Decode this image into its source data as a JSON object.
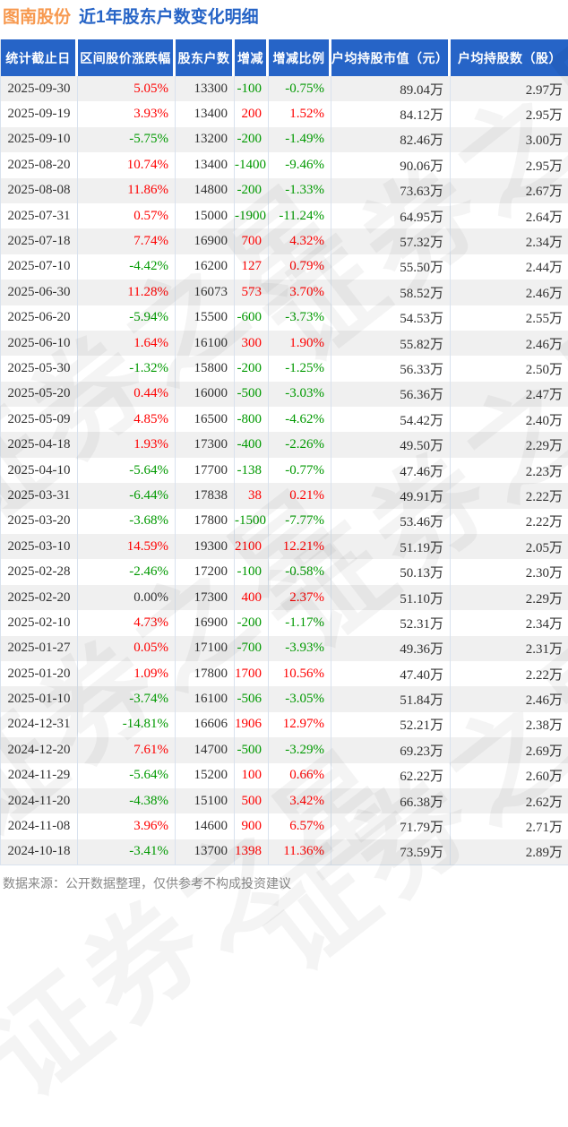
{
  "page": {
    "title_stock": "图南股份",
    "title_sub": "近1年股东户数变化明细"
  },
  "watermark_text": "证券之星",
  "footer_note": "数据来源：公开数据整理，仅供参考不构成投资建议",
  "colors": {
    "header_bg": "#2664c7",
    "title_stock": "#f7994f",
    "title_sub": "#2563c6",
    "up_red": "#fe0000",
    "down_green": "#009900",
    "neutral_text": "#333333",
    "row_stripe": "#f0f0f0",
    "divider": "#d9e2ee"
  },
  "table": {
    "columns": [
      "统计截止日",
      "区间股价涨跌幅",
      "股东户数",
      "增减",
      "增减比例",
      "户均持股市值（元）",
      "户均持股数（股）"
    ],
    "rows": [
      {
        "date": "2025-09-30",
        "change_pct": "5.05%",
        "change_dir": "up",
        "holders": "13300",
        "delta": "-100",
        "delta_pct": "-0.75%",
        "delta_dir": "down",
        "avg_value": "89.04万",
        "avg_shares": "2.97万"
      },
      {
        "date": "2025-09-19",
        "change_pct": "3.93%",
        "change_dir": "up",
        "holders": "13400",
        "delta": "200",
        "delta_pct": "1.52%",
        "delta_dir": "up",
        "avg_value": "84.12万",
        "avg_shares": "2.95万"
      },
      {
        "date": "2025-09-10",
        "change_pct": "-5.75%",
        "change_dir": "down",
        "holders": "13200",
        "delta": "-200",
        "delta_pct": "-1.49%",
        "delta_dir": "down",
        "avg_value": "82.46万",
        "avg_shares": "3.00万"
      },
      {
        "date": "2025-08-20",
        "change_pct": "10.74%",
        "change_dir": "up",
        "holders": "13400",
        "delta": "-1400",
        "delta_pct": "-9.46%",
        "delta_dir": "down",
        "avg_value": "90.06万",
        "avg_shares": "2.95万"
      },
      {
        "date": "2025-08-08",
        "change_pct": "11.86%",
        "change_dir": "up",
        "holders": "14800",
        "delta": "-200",
        "delta_pct": "-1.33%",
        "delta_dir": "down",
        "avg_value": "73.63万",
        "avg_shares": "2.67万"
      },
      {
        "date": "2025-07-31",
        "change_pct": "0.57%",
        "change_dir": "up",
        "holders": "15000",
        "delta": "-1900",
        "delta_pct": "-11.24%",
        "delta_dir": "down",
        "avg_value": "64.95万",
        "avg_shares": "2.64万"
      },
      {
        "date": "2025-07-18",
        "change_pct": "7.74%",
        "change_dir": "up",
        "holders": "16900",
        "delta": "700",
        "delta_pct": "4.32%",
        "delta_dir": "up",
        "avg_value": "57.32万",
        "avg_shares": "2.34万"
      },
      {
        "date": "2025-07-10",
        "change_pct": "-4.42%",
        "change_dir": "down",
        "holders": "16200",
        "delta": "127",
        "delta_pct": "0.79%",
        "delta_dir": "up",
        "avg_value": "55.50万",
        "avg_shares": "2.44万"
      },
      {
        "date": "2025-06-30",
        "change_pct": "11.28%",
        "change_dir": "up",
        "holders": "16073",
        "delta": "573",
        "delta_pct": "3.70%",
        "delta_dir": "up",
        "avg_value": "58.52万",
        "avg_shares": "2.46万"
      },
      {
        "date": "2025-06-20",
        "change_pct": "-5.94%",
        "change_dir": "down",
        "holders": "15500",
        "delta": "-600",
        "delta_pct": "-3.73%",
        "delta_dir": "down",
        "avg_value": "54.53万",
        "avg_shares": "2.55万"
      },
      {
        "date": "2025-06-10",
        "change_pct": "1.64%",
        "change_dir": "up",
        "holders": "16100",
        "delta": "300",
        "delta_pct": "1.90%",
        "delta_dir": "up",
        "avg_value": "55.82万",
        "avg_shares": "2.46万"
      },
      {
        "date": "2025-05-30",
        "change_pct": "-1.32%",
        "change_dir": "down",
        "holders": "15800",
        "delta": "-200",
        "delta_pct": "-1.25%",
        "delta_dir": "down",
        "avg_value": "56.33万",
        "avg_shares": "2.50万"
      },
      {
        "date": "2025-05-20",
        "change_pct": "0.44%",
        "change_dir": "up",
        "holders": "16000",
        "delta": "-500",
        "delta_pct": "-3.03%",
        "delta_dir": "down",
        "avg_value": "56.36万",
        "avg_shares": "2.47万"
      },
      {
        "date": "2025-05-09",
        "change_pct": "4.85%",
        "change_dir": "up",
        "holders": "16500",
        "delta": "-800",
        "delta_pct": "-4.62%",
        "delta_dir": "down",
        "avg_value": "54.42万",
        "avg_shares": "2.40万"
      },
      {
        "date": "2025-04-18",
        "change_pct": "1.93%",
        "change_dir": "up",
        "holders": "17300",
        "delta": "-400",
        "delta_pct": "-2.26%",
        "delta_dir": "down",
        "avg_value": "49.50万",
        "avg_shares": "2.29万"
      },
      {
        "date": "2025-04-10",
        "change_pct": "-5.64%",
        "change_dir": "down",
        "holders": "17700",
        "delta": "-138",
        "delta_pct": "-0.77%",
        "delta_dir": "down",
        "avg_value": "47.46万",
        "avg_shares": "2.23万"
      },
      {
        "date": "2025-03-31",
        "change_pct": "-6.44%",
        "change_dir": "down",
        "holders": "17838",
        "delta": "38",
        "delta_pct": "0.21%",
        "delta_dir": "up",
        "avg_value": "49.91万",
        "avg_shares": "2.22万"
      },
      {
        "date": "2025-03-20",
        "change_pct": "-3.68%",
        "change_dir": "down",
        "holders": "17800",
        "delta": "-1500",
        "delta_pct": "-7.77%",
        "delta_dir": "down",
        "avg_value": "53.46万",
        "avg_shares": "2.22万"
      },
      {
        "date": "2025-03-10",
        "change_pct": "14.59%",
        "change_dir": "up",
        "holders": "19300",
        "delta": "2100",
        "delta_pct": "12.21%",
        "delta_dir": "up",
        "avg_value": "51.19万",
        "avg_shares": "2.05万"
      },
      {
        "date": "2025-02-28",
        "change_pct": "-2.46%",
        "change_dir": "down",
        "holders": "17200",
        "delta": "-100",
        "delta_pct": "-0.58%",
        "delta_dir": "down",
        "avg_value": "50.13万",
        "avg_shares": "2.30万"
      },
      {
        "date": "2025-02-20",
        "change_pct": "0.00%",
        "change_dir": "flat",
        "holders": "17300",
        "delta": "400",
        "delta_pct": "2.37%",
        "delta_dir": "up",
        "avg_value": "51.10万",
        "avg_shares": "2.29万"
      },
      {
        "date": "2025-02-10",
        "change_pct": "4.73%",
        "change_dir": "up",
        "holders": "16900",
        "delta": "-200",
        "delta_pct": "-1.17%",
        "delta_dir": "down",
        "avg_value": "52.31万",
        "avg_shares": "2.34万"
      },
      {
        "date": "2025-01-27",
        "change_pct": "0.05%",
        "change_dir": "up",
        "holders": "17100",
        "delta": "-700",
        "delta_pct": "-3.93%",
        "delta_dir": "down",
        "avg_value": "49.36万",
        "avg_shares": "2.31万"
      },
      {
        "date": "2025-01-20",
        "change_pct": "1.09%",
        "change_dir": "up",
        "holders": "17800",
        "delta": "1700",
        "delta_pct": "10.56%",
        "delta_dir": "up",
        "avg_value": "47.40万",
        "avg_shares": "2.22万"
      },
      {
        "date": "2025-01-10",
        "change_pct": "-3.74%",
        "change_dir": "down",
        "holders": "16100",
        "delta": "-506",
        "delta_pct": "-3.05%",
        "delta_dir": "down",
        "avg_value": "51.84万",
        "avg_shares": "2.46万"
      },
      {
        "date": "2024-12-31",
        "change_pct": "-14.81%",
        "change_dir": "down",
        "holders": "16606",
        "delta": "1906",
        "delta_pct": "12.97%",
        "delta_dir": "up",
        "avg_value": "52.21万",
        "avg_shares": "2.38万"
      },
      {
        "date": "2024-12-20",
        "change_pct": "7.61%",
        "change_dir": "up",
        "holders": "14700",
        "delta": "-500",
        "delta_pct": "-3.29%",
        "delta_dir": "down",
        "avg_value": "69.23万",
        "avg_shares": "2.69万"
      },
      {
        "date": "2024-11-29",
        "change_pct": "-5.64%",
        "change_dir": "down",
        "holders": "15200",
        "delta": "100",
        "delta_pct": "0.66%",
        "delta_dir": "up",
        "avg_value": "62.22万",
        "avg_shares": "2.60万"
      },
      {
        "date": "2024-11-20",
        "change_pct": "-4.38%",
        "change_dir": "down",
        "holders": "15100",
        "delta": "500",
        "delta_pct": "3.42%",
        "delta_dir": "up",
        "avg_value": "66.38万",
        "avg_shares": "2.62万"
      },
      {
        "date": "2024-11-08",
        "change_pct": "3.96%",
        "change_dir": "up",
        "holders": "14600",
        "delta": "900",
        "delta_pct": "6.57%",
        "delta_dir": "up",
        "avg_value": "71.79万",
        "avg_shares": "2.71万"
      },
      {
        "date": "2024-10-18",
        "change_pct": "-3.41%",
        "change_dir": "down",
        "holders": "13700",
        "delta": "1398",
        "delta_pct": "11.36%",
        "delta_dir": "up",
        "avg_value": "73.59万",
        "avg_shares": "2.89万"
      }
    ]
  }
}
